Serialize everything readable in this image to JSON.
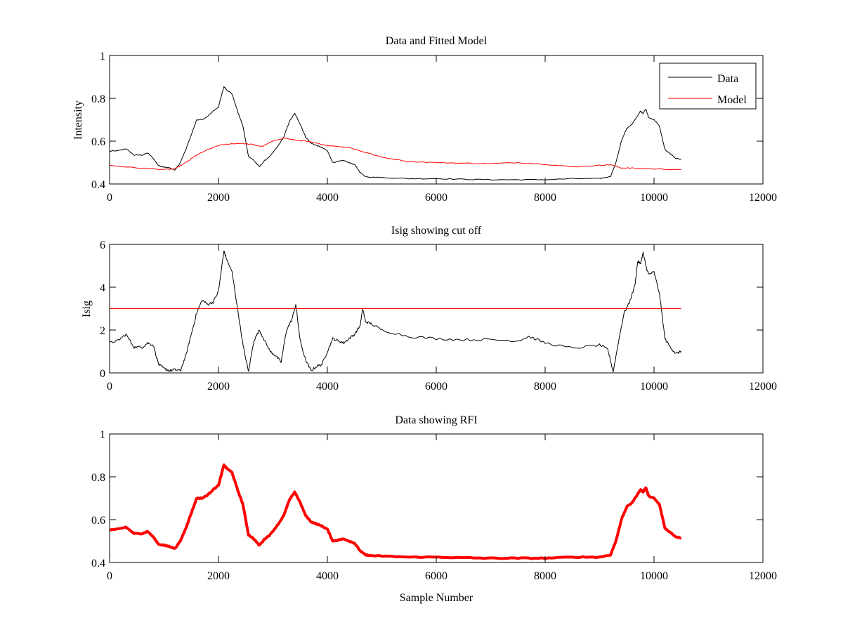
{
  "colors": {
    "data": "#000000",
    "model": "#ff0000",
    "axis": "#000000"
  },
  "chart_data": [
    {
      "type": "line",
      "title": "Data and Fitted Model",
      "xlabel": "",
      "ylabel": "Intensity",
      "xlim": [
        0,
        12000
      ],
      "ylim": [
        0.4,
        1
      ],
      "xticks": [
        "0",
        "2000",
        "4000",
        "6000",
        "8000",
        "10000",
        "12000"
      ],
      "yticks": [
        "0.4",
        "0.6",
        "0.8",
        "1"
      ],
      "legend": {
        "position": "top-right",
        "entries": [
          "Data",
          "Model"
        ]
      },
      "series": [
        {
          "name": "Data",
          "color": "#000000",
          "x": [
            0,
            150,
            300,
            450,
            600,
            700,
            800,
            900,
            1000,
            1100,
            1200,
            1300,
            1400,
            1500,
            1600,
            1700,
            1800,
            1900,
            2000,
            2100,
            2150,
            2250,
            2350,
            2450,
            2550,
            2650,
            2750,
            2850,
            2950,
            3100,
            3200,
            3300,
            3400,
            3500,
            3600,
            3700,
            3800,
            3900,
            4000,
            4100,
            4200,
            4300,
            4400,
            4500,
            4600,
            4700,
            4800,
            5000,
            5500,
            6000,
            6500,
            7000,
            7500,
            8000,
            8500,
            9000,
            9200,
            9300,
            9400,
            9500,
            9600,
            9700,
            9750,
            9800,
            9850,
            9900,
            10000,
            10100,
            10200,
            10300,
            10400,
            10500
          ],
          "y": [
            0.553,
            0.555,
            0.565,
            0.535,
            0.535,
            0.545,
            0.52,
            0.485,
            0.48,
            0.475,
            0.465,
            0.5,
            0.56,
            0.63,
            0.7,
            0.7,
            0.715,
            0.74,
            0.76,
            0.855,
            0.84,
            0.82,
            0.74,
            0.67,
            0.53,
            0.51,
            0.48,
            0.51,
            0.53,
            0.58,
            0.62,
            0.69,
            0.73,
            0.68,
            0.62,
            0.59,
            0.58,
            0.57,
            0.555,
            0.5,
            0.505,
            0.51,
            0.5,
            0.49,
            0.455,
            0.435,
            0.432,
            0.43,
            0.425,
            0.425,
            0.422,
            0.42,
            0.42,
            0.42,
            0.425,
            0.425,
            0.435,
            0.5,
            0.6,
            0.66,
            0.68,
            0.72,
            0.74,
            0.73,
            0.75,
            0.71,
            0.7,
            0.67,
            0.56,
            0.54,
            0.52,
            0.515
          ]
        },
        {
          "name": "Model",
          "color": "#ff0000",
          "x": [
            0,
            500,
            1000,
            1200,
            1400,
            1600,
            1800,
            2000,
            2200,
            2400,
            2600,
            2800,
            3000,
            3200,
            3400,
            3600,
            3800,
            4000,
            4200,
            4400,
            4600,
            5000,
            5500,
            6000,
            6500,
            7000,
            7500,
            8000,
            8500,
            9000,
            9200,
            9400,
            9600,
            10000,
            10500
          ],
          "y": [
            0.487,
            0.475,
            0.468,
            0.47,
            0.5,
            0.535,
            0.56,
            0.58,
            0.587,
            0.59,
            0.585,
            0.575,
            0.6,
            0.615,
            0.605,
            0.6,
            0.59,
            0.58,
            0.575,
            0.57,
            0.555,
            0.525,
            0.505,
            0.5,
            0.497,
            0.495,
            0.5,
            0.492,
            0.48,
            0.487,
            0.49,
            0.475,
            0.474,
            0.47,
            0.468
          ]
        }
      ]
    },
    {
      "type": "line",
      "title": "Isig showing cut off",
      "xlabel": "",
      "ylabel": "Isig",
      "xlim": [
        0,
        12000
      ],
      "ylim": [
        0,
        6
      ],
      "xticks": [
        "0",
        "2000",
        "4000",
        "6000",
        "8000",
        "10000",
        "12000"
      ],
      "yticks": [
        "0",
        "2",
        "4",
        "6"
      ],
      "series": [
        {
          "name": "Isig",
          "color": "#000000",
          "x": [
            0,
            150,
            300,
            450,
            600,
            700,
            800,
            900,
            1000,
            1100,
            1200,
            1300,
            1400,
            1500,
            1600,
            1700,
            1800,
            1900,
            2000,
            2100,
            2150,
            2250,
            2350,
            2450,
            2550,
            2650,
            2750,
            2850,
            2950,
            3050,
            3150,
            3250,
            3350,
            3420,
            3500,
            3600,
            3700,
            3800,
            3900,
            4000,
            4100,
            4200,
            4300,
            4400,
            4500,
            4600,
            4650,
            4700,
            4800,
            5000,
            5500,
            6000,
            6500,
            7000,
            7500,
            7700,
            8000,
            8500,
            9000,
            9150,
            9250,
            9350,
            9450,
            9550,
            9650,
            9700,
            9750,
            9800,
            9850,
            9900,
            10000,
            10100,
            10200,
            10300,
            10400,
            10500
          ],
          "y": [
            1.4,
            1.5,
            1.8,
            1.2,
            1.2,
            1.4,
            1.3,
            0.4,
            0.2,
            0.1,
            0.15,
            0.1,
            0.8,
            1.8,
            2.8,
            3.4,
            3.2,
            3.3,
            3.8,
            5.7,
            5.3,
            4.7,
            3.0,
            1.3,
            0.05,
            1.5,
            2.0,
            1.5,
            1.0,
            0.8,
            0.5,
            2.0,
            2.5,
            3.2,
            1.5,
            0.6,
            0.1,
            0.3,
            0.4,
            1.0,
            1.6,
            1.5,
            1.4,
            1.6,
            1.8,
            2.2,
            3.0,
            2.4,
            2.3,
            2.0,
            1.7,
            1.6,
            1.55,
            1.55,
            1.5,
            1.7,
            1.4,
            1.15,
            1.3,
            1.1,
            0.05,
            1.5,
            2.8,
            3.3,
            4.1,
            5.2,
            5.1,
            5.6,
            5.0,
            4.6,
            4.7,
            3.7,
            1.6,
            1.2,
            0.9,
            1.0
          ]
        },
        {
          "name": "Cut off",
          "color": "#ff0000",
          "x": [
            0,
            10500
          ],
          "y": [
            3,
            3
          ]
        }
      ]
    },
    {
      "type": "line",
      "title": "Data showing RFI",
      "xlabel": "Sample Number",
      "ylabel": "",
      "xlim": [
        0,
        12000
      ],
      "ylim": [
        0.4,
        1
      ],
      "xticks": [
        "0",
        "2000",
        "4000",
        "6000",
        "8000",
        "10000",
        "12000"
      ],
      "yticks": [
        "0.4",
        "0.6",
        "0.8",
        "1"
      ],
      "series": [
        {
          "name": "Data showing RFI",
          "color": "#ff0000",
          "x": [
            0,
            150,
            300,
            450,
            600,
            700,
            800,
            900,
            1000,
            1100,
            1200,
            1300,
            1400,
            1500,
            1600,
            1700,
            1800,
            1900,
            2000,
            2100,
            2150,
            2250,
            2350,
            2450,
            2550,
            2650,
            2750,
            2850,
            2950,
            3100,
            3200,
            3300,
            3400,
            3500,
            3600,
            3700,
            3800,
            3900,
            4000,
            4100,
            4200,
            4300,
            4400,
            4500,
            4600,
            4700,
            4800,
            5000,
            5500,
            6000,
            6500,
            7000,
            7500,
            8000,
            8500,
            9000,
            9200,
            9300,
            9400,
            9500,
            9600,
            9700,
            9750,
            9800,
            9850,
            9900,
            10000,
            10100,
            10200,
            10300,
            10400,
            10500
          ],
          "y": [
            0.553,
            0.555,
            0.565,
            0.535,
            0.535,
            0.545,
            0.52,
            0.485,
            0.48,
            0.475,
            0.465,
            0.5,
            0.56,
            0.63,
            0.7,
            0.7,
            0.715,
            0.74,
            0.76,
            0.855,
            0.84,
            0.82,
            0.74,
            0.67,
            0.53,
            0.51,
            0.48,
            0.51,
            0.53,
            0.58,
            0.62,
            0.69,
            0.73,
            0.68,
            0.62,
            0.59,
            0.58,
            0.57,
            0.555,
            0.5,
            0.505,
            0.51,
            0.5,
            0.49,
            0.455,
            0.435,
            0.432,
            0.43,
            0.425,
            0.425,
            0.422,
            0.42,
            0.42,
            0.42,
            0.425,
            0.425,
            0.435,
            0.5,
            0.6,
            0.66,
            0.68,
            0.72,
            0.74,
            0.73,
            0.75,
            0.71,
            0.7,
            0.67,
            0.56,
            0.54,
            0.52,
            0.515
          ]
        }
      ]
    }
  ]
}
